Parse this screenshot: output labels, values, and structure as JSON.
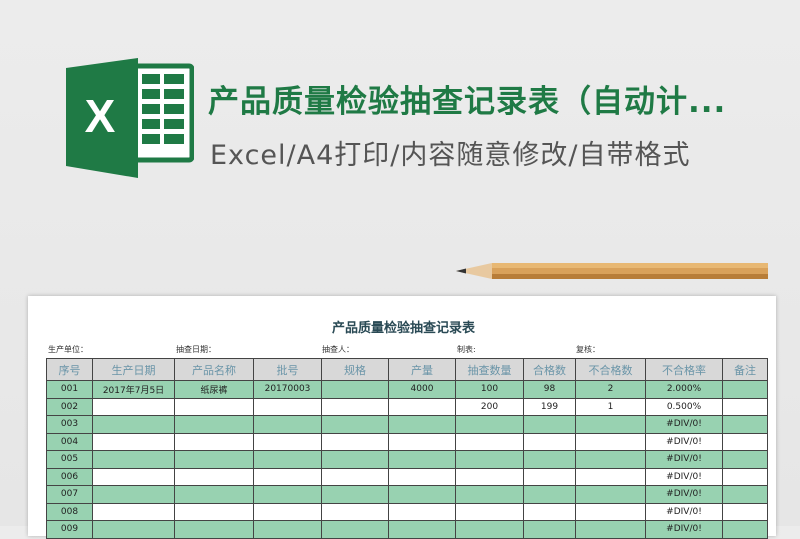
{
  "banner": {
    "title": "产品质量检验抽查记录表（自动计...",
    "subtitle": "Excel/A4打印/内容随意修改/自带格式",
    "logo_letter": "X",
    "brand_color": "#1f7a45"
  },
  "sheet": {
    "title": "产品质量检验抽查记录表",
    "labels": [
      "生产单位：",
      "抽查日期：",
      "抽查人：",
      "制表:",
      "复核："
    ],
    "columns": [
      "序号",
      "生产日期",
      "产品名称",
      "批号",
      "规格",
      "产量",
      "抽查数量",
      "合格数",
      "不合格数",
      "不合格率",
      "备注"
    ],
    "rows": [
      [
        "001",
        "2017年7月5日",
        "纸尿裤",
        "20170003",
        "",
        "4000",
        "100",
        "98",
        "2",
        "2.000%",
        ""
      ],
      [
        "002",
        "",
        "",
        "",
        "",
        "",
        "200",
        "199",
        "1",
        "0.500%",
        ""
      ],
      [
        "003",
        "",
        "",
        "",
        "",
        "",
        "",
        "",
        "",
        "#DIV/0!",
        ""
      ],
      [
        "004",
        "",
        "",
        "",
        "",
        "",
        "",
        "",
        "",
        "#DIV/0!",
        ""
      ],
      [
        "005",
        "",
        "",
        "",
        "",
        "",
        "",
        "",
        "",
        "#DIV/0!",
        ""
      ],
      [
        "006",
        "",
        "",
        "",
        "",
        "",
        "",
        "",
        "",
        "#DIV/0!",
        ""
      ],
      [
        "007",
        "",
        "",
        "",
        "",
        "",
        "",
        "",
        "",
        "#DIV/0!",
        ""
      ],
      [
        "008",
        "",
        "",
        "",
        "",
        "",
        "",
        "",
        "",
        "#DIV/0!",
        ""
      ],
      [
        "009",
        "",
        "",
        "",
        "",
        "",
        "",
        "",
        "",
        "#DIV/0!",
        ""
      ]
    ]
  }
}
